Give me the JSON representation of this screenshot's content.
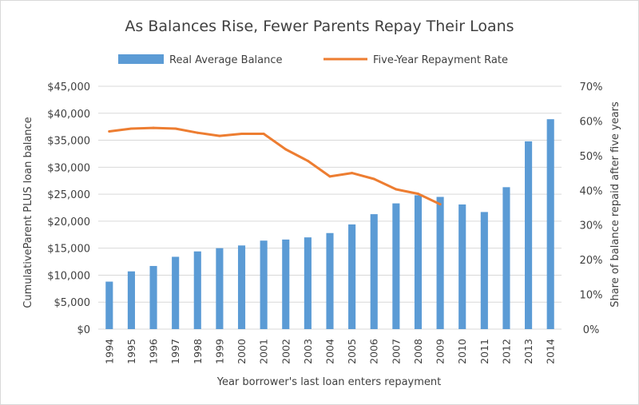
{
  "chart_data": {
    "type": "bar",
    "title": "As Balances Rise, Fewer Parents Repay Their Loans",
    "xlabel": "Year borrower's last loan enters repayment",
    "ylabel": "CumulativeParent  PLUS loan balance",
    "y2label": "Share of balance repaid after five years",
    "legend_position": "top",
    "grid": true,
    "categories": [
      "1994",
      "1995",
      "1996",
      "1997",
      "1998",
      "1999",
      "2000",
      "2001",
      "2002",
      "2003",
      "2004",
      "2005",
      "2006",
      "2007",
      "2008",
      "2009",
      "2010",
      "2011",
      "2012",
      "2013",
      "2014"
    ],
    "ylim": [
      0,
      45000
    ],
    "y_ticks": [
      "$0",
      "$5,000",
      "$10,000",
      "$15,000",
      "$20,000",
      "$25,000",
      "$30,000",
      "$35,000",
      "$40,000",
      "$45,000"
    ],
    "y2lim": [
      0,
      0.7
    ],
    "y2_ticks": [
      "0%",
      "10%",
      "20%",
      "30%",
      "40%",
      "50%",
      "60%",
      "70%"
    ],
    "series": [
      {
        "name": "Real Average Balance",
        "type": "bar",
        "axis": "left",
        "color": "#5b9bd5",
        "values": [
          8800,
          10700,
          11700,
          13400,
          14400,
          15000,
          15500,
          16400,
          16600,
          17000,
          17800,
          19400,
          21300,
          23300,
          24800,
          24500,
          23100,
          21700,
          26300,
          34800,
          38900
        ]
      },
      {
        "name": "Five-Year Repayment Rate",
        "type": "line",
        "axis": "right",
        "color": "#ed7d31",
        "values": [
          0.57,
          0.578,
          0.58,
          0.578,
          0.566,
          0.557,
          0.563,
          0.563,
          0.518,
          0.485,
          0.44,
          0.45,
          0.433,
          0.403,
          0.39,
          0.36,
          null,
          null,
          null,
          null,
          null
        ]
      }
    ]
  }
}
